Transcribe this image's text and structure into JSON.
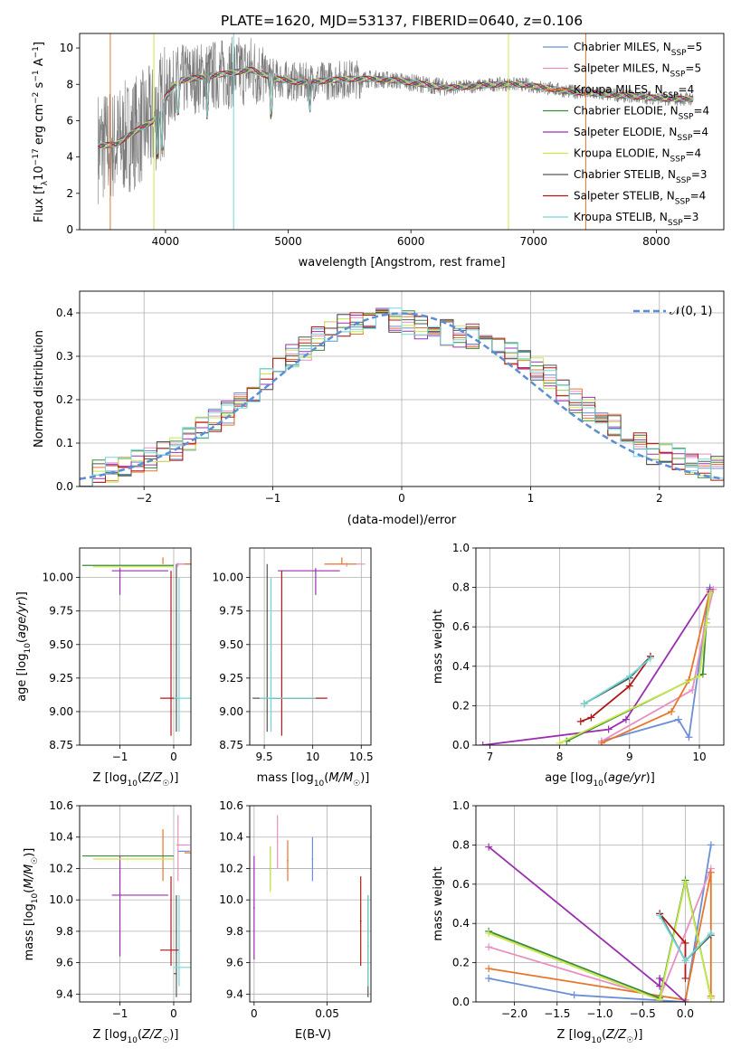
{
  "figure": {
    "title": "PLATE=1620, MJD=53137, FIBERID=0640, z=0.106"
  },
  "chart_data": [
    {
      "id": "spectrum",
      "type": "line",
      "xlabel": "wavelength [Angstrom, rest frame]",
      "ylabel": "Flux [f_λ10^-17 erg cm^-2 s^-1 A^-1]",
      "xlim": [
        3300,
        8550
      ],
      "ylim": [
        0,
        10.8
      ],
      "xticks": [
        4000,
        5000,
        6000,
        7000,
        8000
      ],
      "yticks": [
        0,
        2,
        4,
        6,
        8,
        10
      ],
      "legend_position": "top-right",
      "data_continuum": {
        "x": [
          3450,
          3600,
          3700,
          3800,
          3900,
          4000,
          4100,
          4300,
          4500,
          4700,
          4900,
          5100,
          5300,
          5500,
          5700,
          5900,
          6100,
          6300,
          6500,
          6700,
          6900,
          7100,
          7300,
          7500,
          7700,
          7900,
          8100,
          8300
        ],
        "y": [
          4.6,
          4.7,
          5.2,
          5.6,
          6.0,
          7.3,
          8.2,
          8.4,
          8.6,
          8.8,
          8.3,
          8.1,
          8.2,
          8.3,
          8.3,
          8.2,
          8.0,
          7.8,
          7.9,
          8.0,
          8.0,
          7.8,
          7.6,
          7.5,
          7.4,
          7.3,
          7.2,
          7.2
        ]
      },
      "series": [
        {
          "name": "Chabrier MILES, N_SSP=5",
          "label_main": "Chabrier MILES, N",
          "label_sub": "SSP",
          "label_end": "=5",
          "color": "#6a8fd8"
        },
        {
          "name": "Salpeter MILES, N_SSP=5",
          "label_main": "Salpeter MILES, N",
          "label_sub": "SSP",
          "label_end": "=5",
          "color": "#e88fc0"
        },
        {
          "name": "Kroupa MILES, N_SSP=4",
          "label_main": "Kroupa MILES, N",
          "label_sub": "SSP",
          "label_end": "=4",
          "color": "#e6762a"
        },
        {
          "name": "Chabrier ELODIE, N_SSP=4",
          "label_main": "Chabrier ELODIE, N",
          "label_sub": "SSP",
          "label_end": "=4",
          "color": "#3a8a3a"
        },
        {
          "name": "Salpeter ELODIE, N_SSP=4",
          "label_main": "Salpeter ELODIE, N",
          "label_sub": "SSP",
          "label_end": "=4",
          "color": "#9a30b0"
        },
        {
          "name": "Kroupa ELODIE, N_SSP=4",
          "label_main": "Kroupa ELODIE, N",
          "label_sub": "SSP",
          "label_end": "=4",
          "color": "#c8e84a"
        },
        {
          "name": "Chabrier STELIB, N_SSP=3",
          "label_main": "Chabrier STELIB, N",
          "label_sub": "SSP",
          "label_end": "=3",
          "color": "#555555"
        },
        {
          "name": "Salpeter STELIB, N_SSP=4",
          "label_main": "Salpeter STELIB, N",
          "label_sub": "SSP",
          "label_end": "=4",
          "color": "#b01818"
        },
        {
          "name": "Kroupa STELIB, N_SSP=3",
          "label_main": "Kroupa STELIB, N",
          "label_sub": "SSP",
          "label_end": "=3",
          "color": "#70d8d8"
        }
      ]
    },
    {
      "id": "residuals",
      "type": "line",
      "xlabel": "(data-model)/error",
      "ylabel": "Normed distribution",
      "xlim": [
        -2.5,
        2.5
      ],
      "ylim": [
        0,
        0.45
      ],
      "xticks": [
        -2,
        -1,
        0,
        1,
        2
      ],
      "yticks": [
        0.0,
        0.1,
        0.2,
        0.3,
        0.4
      ],
      "grid": true,
      "legend_position": "top-right",
      "normal_label": "𝒩(0, 1)",
      "hist_centers": [
        -2.45,
        -2.35,
        -2.25,
        -2.15,
        -2.05,
        -1.95,
        -1.85,
        -1.75,
        -1.65,
        -1.55,
        -1.45,
        -1.35,
        -1.25,
        -1.15,
        -1.05,
        -0.95,
        -0.85,
        -0.75,
        -0.65,
        -0.55,
        -0.45,
        -0.35,
        -0.25,
        -0.15,
        -0.05,
        0.05,
        0.15,
        0.25,
        0.35,
        0.45,
        0.55,
        0.65,
        0.75,
        0.85,
        0.95,
        1.05,
        1.15,
        1.25,
        1.35,
        1.45,
        1.55,
        1.65,
        1.75,
        1.85,
        1.95,
        2.05,
        2.15,
        2.25,
        2.35,
        2.45
      ],
      "hist_base": [
        0.03,
        0.035,
        0.04,
        0.045,
        0.055,
        0.065,
        0.075,
        0.09,
        0.11,
        0.13,
        0.155,
        0.17,
        0.2,
        0.225,
        0.25,
        0.27,
        0.3,
        0.32,
        0.34,
        0.36,
        0.37,
        0.38,
        0.385,
        0.39,
        0.385,
        0.375,
        0.37,
        0.36,
        0.355,
        0.35,
        0.345,
        0.34,
        0.33,
        0.31,
        0.29,
        0.27,
        0.25,
        0.225,
        0.2,
        0.18,
        0.16,
        0.14,
        0.115,
        0.095,
        0.08,
        0.07,
        0.06,
        0.05,
        0.045,
        0.04
      ]
    },
    {
      "id": "age-vs-Z",
      "type": "scatter",
      "xlabel": "Z [log10(Z/Z☉)]",
      "ylabel": "age  [log10(age/yr)]",
      "xlim": [
        -1.75,
        0.32
      ],
      "ylim": [
        8.75,
        10.22
      ],
      "xticks": [
        -1,
        0
      ],
      "yticks": [
        8.75,
        9.0,
        9.25,
        9.5,
        9.75,
        10.0
      ],
      "grid": true
    },
    {
      "id": "age-vs-mass",
      "type": "scatter",
      "xlabel": "mass [log10(M/M☉)]",
      "xlim": [
        9.35,
        10.6
      ],
      "ylim": [
        8.75,
        10.22
      ],
      "xticks": [
        9.5,
        10.0,
        10.5
      ],
      "yticks": [
        8.75,
        9.0,
        9.25,
        9.5,
        9.75,
        10.0
      ],
      "grid": true
    },
    {
      "id": "weight-vs-age",
      "type": "line",
      "xlabel": "age  [log10(age/yr)]",
      "ylabel": "mass weight",
      "xlim": [
        6.8,
        10.35
      ],
      "ylim": [
        0,
        1.0
      ],
      "xticks": [
        7,
        8,
        9,
        10
      ],
      "yticks": [
        0.0,
        0.2,
        0.4,
        0.6,
        0.8,
        1.0
      ],
      "grid": true,
      "series": [
        {
          "model": "Chabrier MILES",
          "color": "#6a8fd8",
          "x": [
            8.6,
            9.7,
            9.85,
            10.15
          ],
          "y": [
            0.02,
            0.13,
            0.04,
            0.8
          ]
        },
        {
          "model": "Salpeter MILES",
          "color": "#e88fc0",
          "x": [
            8.6,
            9.9,
            10.1,
            10.2
          ],
          "y": [
            0.02,
            0.28,
            0.64,
            0.79
          ]
        },
        {
          "model": "Kroupa MILES",
          "color": "#e6762a",
          "x": [
            8.6,
            9.6,
            9.85,
            10.15
          ],
          "y": [
            0.01,
            0.17,
            0.33,
            0.78
          ]
        },
        {
          "model": "Chabrier ELODIE",
          "color": "#3a8a3a",
          "x": [
            8.1,
            10.05,
            10.1,
            10.15
          ],
          "y": [
            0.02,
            0.36,
            0.62,
            0.77
          ]
        },
        {
          "model": "Salpeter ELODIE",
          "color": "#9a30b0",
          "x": [
            6.9,
            8.7,
            8.95,
            10.15
          ],
          "y": [
            0.0,
            0.08,
            0.13,
            0.79
          ]
        },
        {
          "model": "Kroupa ELODIE",
          "color": "#c8e84a",
          "x": [
            8.0,
            10.0,
            10.1,
            10.15
          ],
          "y": [
            0.01,
            0.35,
            0.62,
            0.77
          ]
        },
        {
          "model": "Chabrier STELIB",
          "color": "#555555",
          "x": [
            8.35,
            9.0,
            9.3
          ],
          "y": [
            0.21,
            0.34,
            0.45
          ]
        },
        {
          "model": "Salpeter STELIB",
          "color": "#b01818",
          "x": [
            8.3,
            8.45,
            9.0,
            9.3
          ],
          "y": [
            0.12,
            0.14,
            0.3,
            0.45
          ]
        },
        {
          "model": "Kroupa STELIB",
          "color": "#70d8d8",
          "x": [
            8.35,
            9.0,
            9.3
          ],
          "y": [
            0.21,
            0.35,
            0.44
          ]
        }
      ]
    },
    {
      "id": "mass-vs-Z",
      "type": "scatter",
      "xlabel": "Z [log10(Z/Z☉)]",
      "ylabel": "mass [log10(M/M☉)]",
      "xlim": [
        -1.75,
        0.32
      ],
      "ylim": [
        9.35,
        10.6
      ],
      "xticks": [
        -1,
        0
      ],
      "yticks": [
        9.4,
        9.6,
        9.8,
        10.0,
        10.2,
        10.4,
        10.6
      ],
      "grid": true
    },
    {
      "id": "mass-vs-EBV",
      "type": "scatter",
      "xlabel": "E(B-V)",
      "xlim": [
        -0.003,
        0.08
      ],
      "ylim": [
        9.35,
        10.6
      ],
      "xticks": [
        0.0,
        0.05
      ],
      "yticks": [
        9.4,
        9.6,
        9.8,
        10.0,
        10.2,
        10.4,
        10.6
      ],
      "grid": true
    },
    {
      "id": "weight-vs-Z",
      "type": "line",
      "xlabel": "Z [log10(Z/Z☉)]",
      "ylabel": "mass weight",
      "xlim": [
        -2.45,
        0.45
      ],
      "ylim": [
        0,
        1.0
      ],
      "xticks": [
        -2.0,
        -1.5,
        -1.0,
        -0.5,
        0.0
      ],
      "yticks": [
        0.0,
        0.2,
        0.4,
        0.6,
        0.8,
        1.0
      ],
      "grid": true,
      "series": [
        {
          "model": "Chabrier MILES",
          "color": "#6a8fd8",
          "x": [
            -2.3,
            -1.3,
            0.0,
            0.3
          ],
          "y": [
            0.12,
            0.035,
            0.0,
            0.8
          ]
        },
        {
          "model": "Salpeter MILES",
          "color": "#e88fc0",
          "x": [
            -2.3,
            -0.3,
            0.3
          ],
          "y": [
            0.28,
            0.02,
            0.68
          ]
        },
        {
          "model": "Kroupa MILES",
          "color": "#e6762a",
          "x": [
            -2.3,
            0.0,
            0.3,
            0.3
          ],
          "y": [
            0.17,
            0.01,
            0.66,
            0.03
          ]
        },
        {
          "model": "Chabrier ELODIE",
          "color": "#3a8a3a",
          "x": [
            -2.3,
            -0.3,
            0.0,
            0.3
          ],
          "y": [
            0.36,
            0.02,
            0.62,
            0.02
          ]
        },
        {
          "model": "Salpeter ELODIE",
          "color": "#9a30b0",
          "x": [
            -2.3,
            -0.3,
            -0.3,
            0.0
          ],
          "y": [
            0.79,
            0.08,
            0.12,
            0.0
          ]
        },
        {
          "model": "Kroupa ELODIE",
          "color": "#c8e84a",
          "x": [
            -2.3,
            -0.3,
            0.0,
            0.3
          ],
          "y": [
            0.35,
            0.01,
            0.61,
            0.02
          ]
        },
        {
          "model": "Chabrier STELIB",
          "color": "#555555",
          "x": [
            -0.3,
            0.0,
            0.3
          ],
          "y": [
            0.45,
            0.21,
            0.34
          ]
        },
        {
          "model": "Salpeter STELIB",
          "color": "#b01818",
          "x": [
            -0.3,
            0.0,
            0.0
          ],
          "y": [
            0.45,
            0.3,
            0.12
          ]
        },
        {
          "model": "Kroupa STELIB",
          "color": "#70d8d8",
          "x": [
            -0.3,
            0.0,
            0.3
          ],
          "y": [
            0.44,
            0.21,
            0.35
          ]
        }
      ]
    }
  ],
  "error_bar_points": [
    {
      "color": "#6a8fd8",
      "Z": [
        0.08,
        0.08,
        0.3
      ],
      "age": [
        10.1,
        10.1,
        10.1
      ],
      "mass": [
        10.31,
        10.3,
        10.31
      ],
      "ebv": 0.04,
      "ebv_mass": [
        10.12,
        10.4
      ]
    },
    {
      "color": "#e88fc0",
      "Z": [
        0.08,
        0.05,
        0.3
      ],
      "age": [
        10.1,
        10.08,
        10.11
      ],
      "mass": [
        10.35,
        10.12,
        10.54
      ],
      "ebv": 0.016,
      "ebv_mass": [
        10.2,
        10.54
      ]
    },
    {
      "color": "#e6762a",
      "Z": [
        -0.2,
        0.2,
        0.32
      ],
      "age": [
        10.1,
        10.1,
        10.15
      ],
      "mass": [
        10.3,
        10.12,
        10.45
      ],
      "ebv": 0.023,
      "ebv_mass": [
        10.12,
        10.38
      ]
    },
    {
      "color": "#3a8a3a",
      "Z": [
        -0.15,
        -1.7,
        0.0
      ],
      "age": [
        10.09,
        10.09,
        10.09
      ],
      "mass": [
        10.28,
        10.28,
        10.28
      ],
      "ebv": 0.011,
      "ebv_mass": [
        10.06,
        10.34
      ]
    },
    {
      "color": "#9a30b0",
      "Z": [
        -1.0,
        -1.15,
        -0.1
      ],
      "age": [
        10.05,
        9.87,
        10.07
      ],
      "mass": [
        10.03,
        9.64,
        10.28
      ],
      "ebv": 0.0,
      "ebv_mass": [
        9.62,
        10.28
      ]
    },
    {
      "color": "#c8e84a",
      "Z": [
        -0.2,
        -1.5,
        0.0
      ],
      "age": [
        10.08,
        10.08,
        10.08
      ],
      "mass": [
        10.26,
        10.26,
        10.26
      ],
      "ebv": 0.011,
      "ebv_mass": [
        10.05,
        10.34
      ]
    },
    {
      "color": "#555555",
      "Z": [
        0.05,
        0.0,
        0.05
      ],
      "age": [
        9.1,
        8.85,
        10.1
      ],
      "mass": [
        9.53,
        9.38,
        10.03
      ],
      "ebv": 0.078,
      "ebv_mass": [
        9.38,
        10.03
      ]
    },
    {
      "color": "#b01818",
      "Z": [
        -0.05,
        -0.25,
        0.1
      ],
      "age": [
        9.1,
        8.82,
        10.05
      ],
      "mass": [
        9.68,
        9.58,
        10.15
      ],
      "ebv": 0.073,
      "ebv_mass": [
        9.58,
        10.15
      ]
    },
    {
      "color": "#70d8d8",
      "Z": [
        0.1,
        0.0,
        0.32
      ],
      "age": [
        9.1,
        8.85,
        10.0
      ],
      "mass": [
        9.57,
        9.45,
        10.03
      ],
      "ebv": 0.078,
      "ebv_mass": [
        9.45,
        10.03
      ]
    }
  ]
}
